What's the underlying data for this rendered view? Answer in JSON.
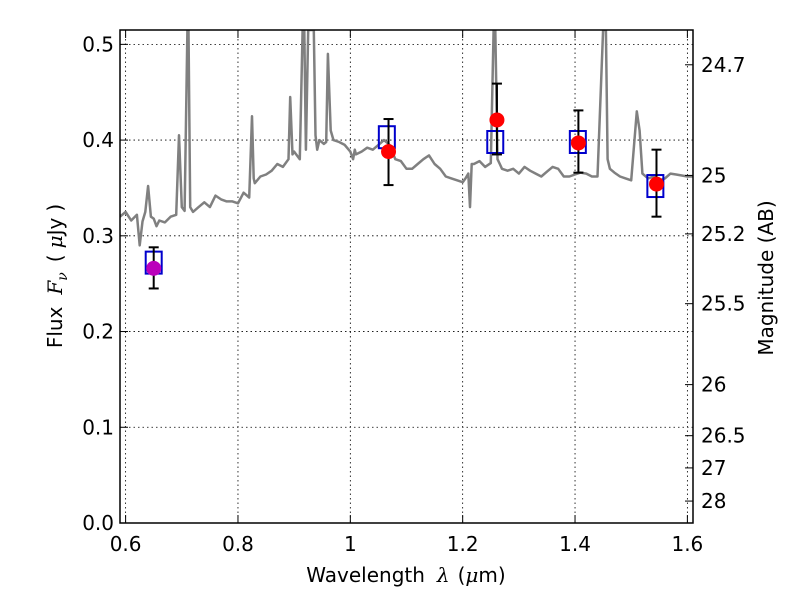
{
  "chart_data": {
    "type": "scatter",
    "xlabel": "Wavelength",
    "xlabel_symbol": "λ",
    "xlabel_unit_open": "(",
    "xlabel_unit_mu": "μ",
    "xlabel_unit_rest": "m)",
    "ylabel": "Flux",
    "ylabel_symbol": "F",
    "ylabel_subscript": "ν",
    "ylabel_unit_open": "(",
    "ylabel_unit_mu": "μ",
    "ylabel_unit_rest": "Jy",
    "ylabel_unit_close": ")",
    "y2label": "Magnitude (AB)",
    "xlim": [
      0.59,
      1.61
    ],
    "ylim": [
      0.0,
      0.515
    ],
    "grid": true,
    "x_ticks": [
      0.6,
      0.8,
      1.0,
      1.2,
      1.4,
      1.6
    ],
    "x_tick_labels": [
      "0.6",
      "0.8",
      "1",
      "1.2",
      "1.4",
      "1.6"
    ],
    "y_ticks": [
      0.0,
      0.1,
      0.2,
      0.3,
      0.4,
      0.5
    ],
    "y_tick_labels": [
      "0.0",
      "0.1",
      "0.2",
      "0.3",
      "0.4",
      "0.5"
    ],
    "mag_ticks": [
      24.7,
      25,
      25.2,
      25.5,
      26,
      26.5,
      27,
      28
    ],
    "mag_tick_labels": [
      "24.7",
      "25",
      "25.2",
      "25.5",
      "26",
      "26.5",
      "27",
      "28"
    ],
    "colors": {
      "spectrum": "#808080",
      "observed": "#ff0000",
      "observed_first": "#bb00bb",
      "model": "#0000cc",
      "errorbar": "#000000"
    },
    "series": [
      {
        "name": "template spectrum",
        "style": "line",
        "x": [
          0.59,
          0.6,
          0.61,
          0.62,
          0.625,
          0.63,
          0.635,
          0.64,
          0.645,
          0.65,
          0.655,
          0.66,
          0.67,
          0.68,
          0.69,
          0.695,
          0.7,
          0.705,
          0.71,
          0.712,
          0.715,
          0.72,
          0.73,
          0.74,
          0.75,
          0.76,
          0.77,
          0.78,
          0.79,
          0.8,
          0.81,
          0.82,
          0.825,
          0.828,
          0.83,
          0.84,
          0.85,
          0.86,
          0.87,
          0.88,
          0.89,
          0.893,
          0.897,
          0.9,
          0.91,
          0.915,
          0.918,
          0.921,
          0.925,
          0.935,
          0.938,
          0.941,
          0.945,
          0.953,
          0.957,
          0.96,
          0.965,
          0.97,
          0.98,
          0.99,
          1.0,
          1.005,
          1.008,
          1.01,
          1.02,
          1.03,
          1.04,
          1.05,
          1.06,
          1.07,
          1.08,
          1.09,
          1.1,
          1.11,
          1.12,
          1.13,
          1.14,
          1.15,
          1.16,
          1.17,
          1.18,
          1.19,
          1.2,
          1.205,
          1.21,
          1.213,
          1.216,
          1.22,
          1.23,
          1.24,
          1.25,
          1.255,
          1.258,
          1.262,
          1.266,
          1.27,
          1.28,
          1.29,
          1.3,
          1.31,
          1.32,
          1.33,
          1.34,
          1.35,
          1.36,
          1.37,
          1.38,
          1.39,
          1.4,
          1.41,
          1.42,
          1.43,
          1.44,
          1.45,
          1.455,
          1.458,
          1.462,
          1.47,
          1.48,
          1.49,
          1.5,
          1.51,
          1.515,
          1.52,
          1.53,
          1.54,
          1.55,
          1.56,
          1.57,
          1.58,
          1.59,
          1.6,
          1.61
        ],
        "y": [
          0.32,
          0.325,
          0.316,
          0.322,
          0.29,
          0.315,
          0.325,
          0.352,
          0.32,
          0.318,
          0.31,
          0.316,
          0.314,
          0.32,
          0.322,
          0.405,
          0.33,
          0.326,
          0.515,
          0.515,
          0.33,
          0.325,
          0.33,
          0.335,
          0.33,
          0.342,
          0.338,
          0.336,
          0.336,
          0.334,
          0.345,
          0.34,
          0.425,
          0.36,
          0.355,
          0.362,
          0.364,
          0.368,
          0.375,
          0.372,
          0.38,
          0.445,
          0.385,
          0.388,
          0.38,
          0.515,
          0.515,
          0.39,
          0.515,
          0.515,
          0.405,
          0.39,
          0.4,
          0.396,
          0.398,
          0.49,
          0.41,
          0.4,
          0.398,
          0.395,
          0.388,
          0.38,
          0.39,
          0.385,
          0.388,
          0.392,
          0.39,
          0.395,
          0.4,
          0.395,
          0.38,
          0.378,
          0.37,
          0.37,
          0.375,
          0.38,
          0.384,
          0.375,
          0.37,
          0.362,
          0.36,
          0.358,
          0.356,
          0.36,
          0.365,
          0.33,
          0.375,
          0.375,
          0.378,
          0.372,
          0.376,
          0.515,
          0.515,
          0.38,
          0.375,
          0.37,
          0.368,
          0.37,
          0.365,
          0.372,
          0.368,
          0.365,
          0.362,
          0.367,
          0.372,
          0.37,
          0.362,
          0.362,
          0.364,
          0.366,
          0.365,
          0.362,
          0.362,
          0.515,
          0.515,
          0.38,
          0.37,
          0.366,
          0.362,
          0.36,
          0.358,
          0.43,
          0.41,
          0.365,
          0.36,
          0.362,
          0.358,
          0.36,
          0.365,
          0.364,
          0.363,
          0.362,
          0.362
        ]
      },
      {
        "name": "model photometry",
        "style": "open-square",
        "x": [
          0.65,
          1.065,
          1.258,
          1.405,
          1.543
        ],
        "y": [
          0.272,
          0.403,
          0.398,
          0.398,
          0.352
        ]
      },
      {
        "name": "observed photometry",
        "style": "filled-circle",
        "x": [
          0.65,
          1.068,
          1.261,
          1.406,
          1.545
        ],
        "y": [
          0.266,
          0.388,
          0.421,
          0.397,
          0.354
        ],
        "yerr_low": [
          0.021,
          0.035,
          0.036,
          0.031,
          0.034
        ],
        "yerr_high": [
          0.022,
          0.034,
          0.038,
          0.034,
          0.036
        ]
      }
    ]
  }
}
